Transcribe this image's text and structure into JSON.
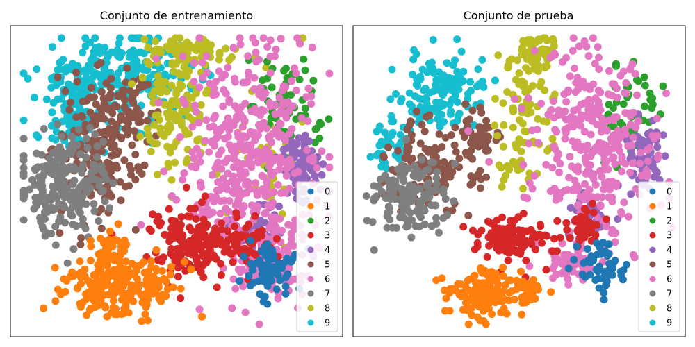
{
  "palette": {
    "0": "#1f77b4",
    "1": "#ff7f0e",
    "2": "#2ca02c",
    "3": "#d62728",
    "4": "#9467bd",
    "5": "#8c564b",
    "6": "#e377c2",
    "7": "#7f7f7f",
    "8": "#bcbd22",
    "9": "#17becf"
  },
  "chart_data": [
    {
      "type": "scatter",
      "title": "Conjunto de entrenamiento",
      "xlabel": "",
      "ylabel": "",
      "axes_ticks": false,
      "legend": {
        "placement": "lower-right",
        "entries": [
          "0",
          "1",
          "2",
          "3",
          "4",
          "5",
          "6",
          "7",
          "8",
          "9"
        ]
      },
      "x_range": [
        0,
        100
      ],
      "y_range": [
        0,
        100
      ],
      "clusters": [
        {
          "label": "9",
          "blobs": [
            [
              32,
              83,
              22,
              12,
              260
            ],
            [
              20,
              72,
              8,
              12,
              90
            ]
          ]
        },
        {
          "label": "5",
          "blobs": [
            [
              27,
              61,
              12,
              22,
              200
            ],
            [
              35,
              74,
              8,
              8,
              40
            ]
          ]
        },
        {
          "label": "7",
          "blobs": [
            [
              17,
              50,
              12,
              16,
              220
            ]
          ]
        },
        {
          "label": "8",
          "blobs": [
            [
              54,
              92,
              10,
              4,
              70
            ],
            [
              50,
              73,
              9,
              17,
              130
            ],
            [
              78,
              55,
              17,
              30,
              40
            ]
          ]
        },
        {
          "label": "2",
          "blobs": [
            [
              83,
              74,
              9,
              16,
              60
            ]
          ]
        },
        {
          "label": "4",
          "blobs": [
            [
              88,
              55,
              7,
              10,
              70
            ],
            [
              74,
              35,
              8,
              8,
              40
            ]
          ]
        },
        {
          "label": "6",
          "blobs": [
            [
              72,
              58,
              19,
              34,
              420
            ],
            [
              78,
              24,
              11,
              10,
              120
            ]
          ]
        },
        {
          "label": "3",
          "blobs": [
            [
              55,
              30,
              12,
              10,
              170
            ],
            [
              71,
              30,
              6,
              7,
              40
            ]
          ]
        },
        {
          "label": "0",
          "blobs": [
            [
              78,
              22,
              7,
              8,
              70
            ]
          ]
        },
        {
          "label": "1",
          "blobs": [
            [
              33,
              16,
              15,
              9,
              220
            ],
            [
              30,
              28,
              5,
              5,
              40
            ]
          ]
        }
      ]
    },
    {
      "type": "scatter",
      "title": "Conjunto de prueba",
      "xlabel": "",
      "ylabel": "",
      "axes_ticks": false,
      "legend": {
        "placement": "lower-right",
        "entries": [
          "0",
          "1",
          "2",
          "3",
          "4",
          "5",
          "6",
          "7",
          "8",
          "9"
        ]
      },
      "x_range": [
        0,
        100
      ],
      "y_range": [
        0,
        100
      ],
      "clusters": [
        {
          "label": "9",
          "blobs": [
            [
              27,
              78,
              12,
              12,
              130
            ],
            [
              12,
              62,
              5,
              8,
              40
            ]
          ]
        },
        {
          "label": "5",
          "blobs": [
            [
              24,
              55,
              12,
              14,
              130
            ],
            [
              38,
              65,
              6,
              8,
              40
            ]
          ]
        },
        {
          "label": "7",
          "blobs": [
            [
              16,
              44,
              11,
              11,
              140
            ]
          ]
        },
        {
          "label": "8",
          "blobs": [
            [
              56,
              92,
              6,
              5,
              50
            ],
            [
              52,
              74,
              8,
              16,
              80
            ],
            [
              48,
              53,
              4,
              4,
              15
            ]
          ]
        },
        {
          "label": "2",
          "blobs": [
            [
              83,
              72,
              9,
              14,
              50
            ]
          ]
        },
        {
          "label": "4",
          "blobs": [
            [
              88,
              58,
              7,
              10,
              60
            ],
            [
              70,
              38,
              7,
              6,
              40
            ]
          ]
        },
        {
          "label": "6",
          "blobs": [
            [
              72,
              60,
              17,
              28,
              320
            ],
            [
              65,
              24,
              8,
              5,
              60
            ]
          ]
        },
        {
          "label": "3",
          "blobs": [
            [
              48,
              32,
              9,
              7,
              140
            ],
            [
              70,
              36,
              5,
              5,
              40
            ]
          ]
        },
        {
          "label": "0",
          "blobs": [
            [
              74,
              22,
              7,
              8,
              60
            ]
          ]
        },
        {
          "label": "1",
          "blobs": [
            [
              39,
              14,
              10,
              8,
              140
            ],
            [
              52,
              16,
              5,
              4,
              30
            ]
          ]
        }
      ]
    }
  ]
}
